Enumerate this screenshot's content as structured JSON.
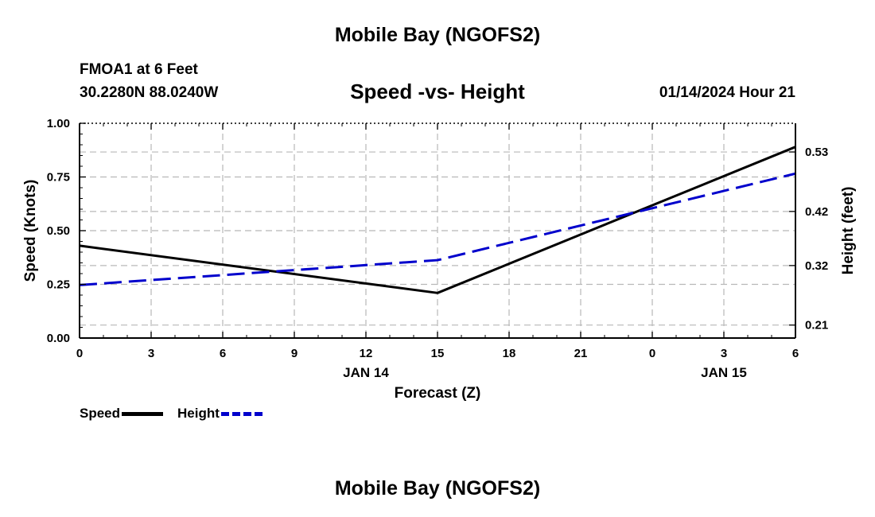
{
  "page": {
    "title": "Mobile Bay (NGOFS2)",
    "station": "FMOA1 at 6 Feet",
    "coords": "30.2280N  88.0240W",
    "datetime": "01/14/2024 Hour 21",
    "bottom_title": "Mobile Bay (NGOFS2)"
  },
  "chart_data": {
    "type": "line",
    "title": "Speed -vs- Height",
    "xlabel": "Forecast (Z)",
    "ylabel": "Speed (Knots)",
    "y2label": "Height (feet)",
    "x_ticks": [
      "0",
      "3",
      "6",
      "9",
      "12",
      "15",
      "18",
      "21",
      "0",
      "3",
      "6"
    ],
    "x_range": [
      0,
      30
    ],
    "day_labels": [
      {
        "label": "JAN 14",
        "x": 12
      },
      {
        "label": "JAN 15",
        "x": 27
      }
    ],
    "ylim": [
      0,
      1.0
    ],
    "y_ticks": [
      "0.00",
      "0.25",
      "0.50",
      "0.75",
      "1.00"
    ],
    "y2lim": [
      0.186,
      0.583
    ],
    "y2_ticks": [
      "0.21",
      "0.32",
      "0.42",
      "0.53"
    ],
    "grid": true,
    "legend_position": "bottom-left",
    "series": [
      {
        "name": "Speed",
        "axis": "left",
        "color": "#000000",
        "style": "solid",
        "x": [
          0,
          15,
          30
        ],
        "values": [
          0.43,
          0.21,
          0.89
        ]
      },
      {
        "name": "Height",
        "axis": "right",
        "color": "#0000cc",
        "style": "dashed",
        "x": [
          0,
          15,
          30
        ],
        "values": [
          0.284,
          0.33,
          0.49
        ]
      }
    ]
  }
}
